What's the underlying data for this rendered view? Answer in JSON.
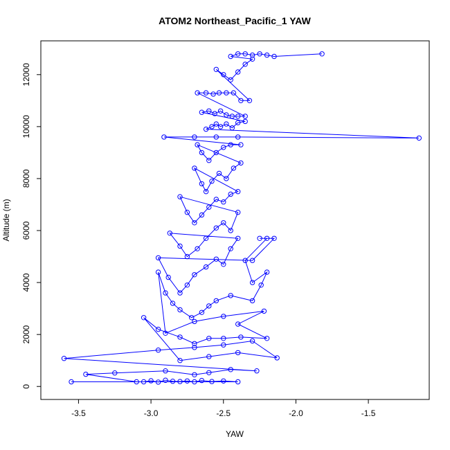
{
  "chart_data": {
    "type": "line",
    "title": "ATOM2 Northeast_Pacific_1 YAW",
    "xlabel": "YAW",
    "ylabel": "Altitude (m)",
    "xlim": [
      -3.76,
      -1.08
    ],
    "ylim": [
      -500,
      13300
    ],
    "x_ticks": [
      -3.5,
      -3.0,
      -2.5,
      -2.0,
      -1.5
    ],
    "x_tick_labels": [
      "-3.5",
      "-3.0",
      "-2.5",
      "-2.0",
      "-1.5"
    ],
    "y_ticks": [
      0,
      2000,
      4000,
      6000,
      8000,
      10000,
      12000
    ],
    "y_tick_labels": [
      "0",
      "2000",
      "4000",
      "6000",
      "8000",
      "10000",
      "12000"
    ],
    "grid": false,
    "series_color": "#0000ff",
    "series": [
      {
        "name": "",
        "points": [
          [
            -3.05,
            180
          ],
          [
            -3.0,
            220
          ],
          [
            -2.95,
            170
          ],
          [
            -2.9,
            240
          ],
          [
            -2.85,
            200
          ],
          [
            -2.8,
            190
          ],
          [
            -2.75,
            210
          ],
          [
            -2.7,
            180
          ],
          [
            -2.65,
            230
          ],
          [
            -2.58,
            190
          ],
          [
            -2.5,
            210
          ],
          [
            -2.4,
            180
          ],
          [
            -3.55,
            180
          ],
          [
            -3.1,
            180
          ],
          [
            -3.45,
            470
          ],
          [
            -3.25,
            520
          ],
          [
            -2.9,
            600
          ],
          [
            -2.7,
            450
          ],
          [
            -2.6,
            530
          ],
          [
            -2.45,
            650
          ],
          [
            -2.27,
            600
          ],
          [
            -3.6,
            1080
          ],
          [
            -2.95,
            1400
          ],
          [
            -2.7,
            1500
          ],
          [
            -2.5,
            1600
          ],
          [
            -2.3,
            1750
          ],
          [
            -2.13,
            1100
          ],
          [
            -2.4,
            1300
          ],
          [
            -2.6,
            1150
          ],
          [
            -2.8,
            1000
          ],
          [
            -3.05,
            2650
          ],
          [
            -2.95,
            2200
          ],
          [
            -2.8,
            1900
          ],
          [
            -2.7,
            1650
          ],
          [
            -2.6,
            1850
          ],
          [
            -2.5,
            1850
          ],
          [
            -2.38,
            1900
          ],
          [
            -2.2,
            1850
          ],
          [
            -2.4,
            2400
          ],
          [
            -2.22,
            2900
          ],
          [
            -2.5,
            2700
          ],
          [
            -2.7,
            2500
          ],
          [
            -2.9,
            2050
          ],
          [
            -2.95,
            4400
          ],
          [
            -2.9,
            3600
          ],
          [
            -2.85,
            3200
          ],
          [
            -2.8,
            2950
          ],
          [
            -2.72,
            2650
          ],
          [
            -2.65,
            2850
          ],
          [
            -2.6,
            3100
          ],
          [
            -2.55,
            3300
          ],
          [
            -2.45,
            3500
          ],
          [
            -2.3,
            3300
          ],
          [
            -2.24,
            3900
          ],
          [
            -2.2,
            4400
          ],
          [
            -2.3,
            4000
          ],
          [
            -2.35,
            4850
          ],
          [
            -2.2,
            5700
          ],
          [
            -2.25,
            5700
          ],
          [
            -2.15,
            5700
          ],
          [
            -2.3,
            4850
          ],
          [
            -2.95,
            4950
          ],
          [
            -2.88,
            4200
          ],
          [
            -2.8,
            3600
          ],
          [
            -2.75,
            3900
          ],
          [
            -2.7,
            4300
          ],
          [
            -2.62,
            4600
          ],
          [
            -2.55,
            4900
          ],
          [
            -2.5,
            4700
          ],
          [
            -2.45,
            5300
          ],
          [
            -2.4,
            5700
          ],
          [
            -2.87,
            5900
          ],
          [
            -2.8,
            5400
          ],
          [
            -2.75,
            5000
          ],
          [
            -2.68,
            5300
          ],
          [
            -2.62,
            5700
          ],
          [
            -2.55,
            6100
          ],
          [
            -2.5,
            6300
          ],
          [
            -2.45,
            6000
          ],
          [
            -2.4,
            6700
          ],
          [
            -2.8,
            7300
          ],
          [
            -2.75,
            6700
          ],
          [
            -2.7,
            6300
          ],
          [
            -2.65,
            6600
          ],
          [
            -2.6,
            6900
          ],
          [
            -2.55,
            7200
          ],
          [
            -2.5,
            7100
          ],
          [
            -2.45,
            7400
          ],
          [
            -2.4,
            7500
          ],
          [
            -2.7,
            8400
          ],
          [
            -2.65,
            7800
          ],
          [
            -2.62,
            7500
          ],
          [
            -2.58,
            7900
          ],
          [
            -2.53,
            8200
          ],
          [
            -2.48,
            8000
          ],
          [
            -2.43,
            8400
          ],
          [
            -2.38,
            8600
          ],
          [
            -2.68,
            9300
          ],
          [
            -2.65,
            9000
          ],
          [
            -2.6,
            8700
          ],
          [
            -2.55,
            9000
          ],
          [
            -2.5,
            9200
          ],
          [
            -2.45,
            9300
          ],
          [
            -2.38,
            9300
          ],
          [
            -2.91,
            9600
          ],
          [
            -2.7,
            9600
          ],
          [
            -2.55,
            9600
          ],
          [
            -2.4,
            9600
          ],
          [
            -1.15,
            9560
          ],
          [
            -2.62,
            9900
          ],
          [
            -2.58,
            10000
          ],
          [
            -2.55,
            10100
          ],
          [
            -2.52,
            10000
          ],
          [
            -2.48,
            10100
          ],
          [
            -2.44,
            9950
          ],
          [
            -2.4,
            10150
          ],
          [
            -2.35,
            10200
          ],
          [
            -2.65,
            10550
          ],
          [
            -2.6,
            10600
          ],
          [
            -2.56,
            10500
          ],
          [
            -2.52,
            10600
          ],
          [
            -2.48,
            10450
          ],
          [
            -2.44,
            10400
          ],
          [
            -2.4,
            10400
          ],
          [
            -2.35,
            10400
          ],
          [
            -2.68,
            11300
          ],
          [
            -2.62,
            11300
          ],
          [
            -2.57,
            11250
          ],
          [
            -2.53,
            11300
          ],
          [
            -2.48,
            11300
          ],
          [
            -2.43,
            11300
          ],
          [
            -2.38,
            11000
          ],
          [
            -2.32,
            11000
          ],
          [
            -2.55,
            12200
          ],
          [
            -2.5,
            12000
          ],
          [
            -2.45,
            11800
          ],
          [
            -2.4,
            12100
          ],
          [
            -2.35,
            12400
          ],
          [
            -2.3,
            12600
          ],
          [
            -2.45,
            12700
          ],
          [
            -2.4,
            12800
          ],
          [
            -2.35,
            12800
          ],
          [
            -2.3,
            12750
          ],
          [
            -2.25,
            12800
          ],
          [
            -2.2,
            12750
          ],
          [
            -2.15,
            12700
          ],
          [
            -1.82,
            12800
          ]
        ]
      }
    ]
  }
}
